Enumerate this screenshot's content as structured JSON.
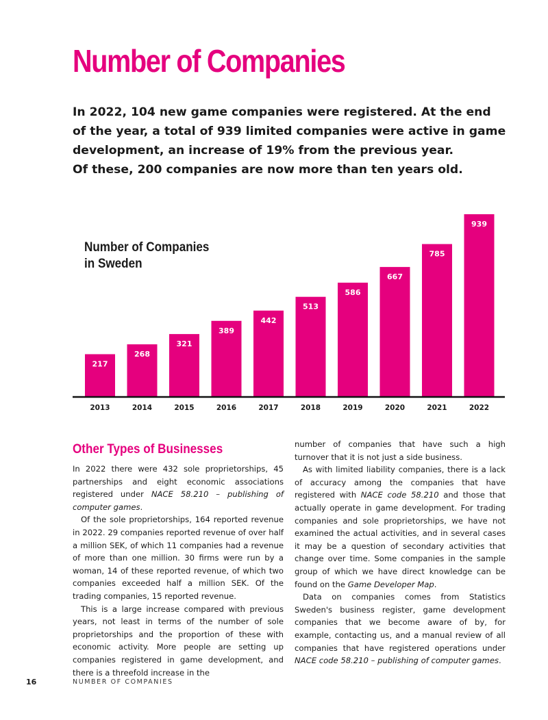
{
  "page": {
    "title": "Number of Companies",
    "lead": [
      "In 2022, 104 new game companies were registered. At the end",
      "of the year, a total of 939 limited companies were active in game",
      "development, an increase of 19% from the previous year.",
      "Of these, 200 companies are now more than ten years old."
    ]
  },
  "chart_data": {
    "type": "bar",
    "title": "Number of Companies in Sweden",
    "title_lines": [
      "Number of Companies",
      "in Sweden"
    ],
    "categories": [
      "2013",
      "2014",
      "2015",
      "2016",
      "2017",
      "2018",
      "2019",
      "2020",
      "2021",
      "2022"
    ],
    "values": [
      217,
      268,
      321,
      389,
      442,
      513,
      586,
      667,
      785,
      939
    ],
    "xlabel": "",
    "ylabel": "",
    "ylim": [
      0,
      939
    ],
    "color": "#e5007e",
    "grid": false,
    "legend": "none"
  },
  "body": {
    "subheading": "Other Types of Businesses",
    "p1_a": "In 2022 there were 432 sole proprietorships, 45 partnerships and eight economic associations registered under ",
    "p1_em": "NACE 58.210 – publishing of computer games",
    "p1_b": ".",
    "p2": "Of the sole proprietorships, 164 reported revenue in 2022. 29 companies reported revenue of over half a million SEK, of which 11 companies had a revenue of more than one million. 30 firms were run by a woman, 14 of these reported revenue, of which two companies exceeded half a million SEK. Of the trading companies, 15 reported revenue.",
    "p3": "This is a large increase compared with previous years, not least in terms of the number of sole proprietorships and the proportion of these with economic activity. More people are setting up companies registered in game development, and there is a threefold increase in the number of companies that have such a high turnover that it is not just a side business.",
    "p3_left": "This is a large increase compared with previous years, not least in terms of the number of sole proprietorships and the proportion of these with economic activity. More people are setting up companies registered in game development, and there is a threefold increase in the",
    "p3_right": "number of companies that have such a high turnover that it is not just a side business.",
    "p4_a": "As with limited liability companies, there is a lack of accuracy among the companies that have registered with ",
    "p4_em1": "NACE code 58.210",
    "p4_b": " and those that actually operate in game development. For trading companies and sole proprietorships, we have not examined the actual activities, and in several cases it may be a question of secondary activities that change over time. Some companies in the sample group of which we have direct knowledge can be found on the ",
    "p4_em2": "Game Developer Map",
    "p4_c": ".",
    "p5_a": "Data on companies comes from Statistics Sweden's business register, game development companies that we become aware of by, for example, contacting us, and a manual review of all companies that have registered operations under ",
    "p5_em": "NACE code 58.210 – publishing of computer games",
    "p5_b": "."
  },
  "footer": {
    "page_number": "16",
    "section_label": "NUMBER OF COMPANIES"
  }
}
